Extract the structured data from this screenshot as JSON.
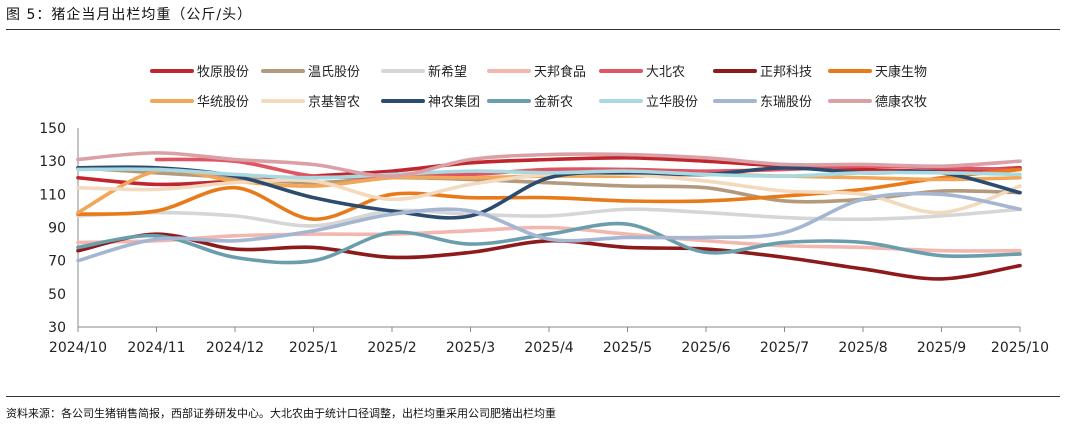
{
  "title": "图 5：猪企当月出栏均重（公斤/头）",
  "source": "资料来源：各公司生猪销售简报，西部证券研发中心。大北农由于统计口径调整，出栏均重采用公司肥猪出栏均重",
  "chart_data": {
    "type": "line",
    "title": "图 5：猪企当月出栏均重（公斤/头）",
    "xlabel": "",
    "ylabel": "",
    "ylim": [
      30,
      150
    ],
    "yticks": [
      30,
      50,
      70,
      90,
      110,
      130,
      150
    ],
    "grid": false,
    "legend_position": "top",
    "categories": [
      "2024/10",
      "2024/11",
      "2024/12",
      "2025/1",
      "2025/2",
      "2025/3",
      "2025/4",
      "2025/5",
      "2025/6",
      "2025/7",
      "2025/8",
      "2025/9",
      "2025/10"
    ],
    "series": [
      {
        "name": "牧原股份",
        "color": "#c0262d",
        "values": [
          120,
          116,
          118,
          121,
          124,
          129,
          131,
          132,
          130,
          127,
          125,
          124,
          126
        ]
      },
      {
        "name": "温氏股份",
        "color": "#b39a7c",
        "values": [
          126,
          123,
          120,
          117,
          120,
          119,
          117,
          115,
          114,
          106,
          107,
          112,
          111
        ]
      },
      {
        "name": "新希望",
        "color": "#d6d6d6",
        "values": [
          97,
          99,
          97,
          91,
          100,
          98,
          97,
          101,
          99,
          96,
          95,
          97,
          101
        ]
      },
      {
        "name": "天邦食品",
        "color": "#f2b8b0",
        "values": [
          81,
          82,
          85,
          86,
          86,
          88,
          90,
          86,
          82,
          79,
          78,
          76,
          76
        ]
      },
      {
        "name": "大北农",
        "color": "#e05563",
        "values": [
          null,
          131,
          130,
          121,
          121,
          122,
          125,
          125,
          124,
          125,
          127,
          126,
          125
        ]
      },
      {
        "name": "正邦科技",
        "color": "#8e1b1b",
        "values": [
          76,
          86,
          77,
          78,
          72,
          75,
          82,
          78,
          77,
          72,
          65,
          59,
          67
        ]
      },
      {
        "name": "天康生物",
        "color": "#e87a1a",
        "values": [
          98,
          100,
          114,
          95,
          110,
          108,
          108,
          106,
          106,
          109,
          113,
          120,
          125
        ]
      },
      {
        "name": "华统股份",
        "color": "#f2a65a",
        "values": [
          99,
          124,
          118,
          115,
          120,
          120,
          121,
          121,
          122,
          121,
          120,
          119,
          120
        ]
      },
      {
        "name": "京基智农",
        "color": "#f3d9bd",
        "values": [
          114,
          113,
          117,
          118,
          107,
          116,
          122,
          122,
          118,
          112,
          110,
          99,
          115
        ]
      },
      {
        "name": "神农集团",
        "color": "#2b4c6f",
        "values": [
          126,
          126,
          121,
          108,
          100,
          97,
          120,
          123,
          122,
          126,
          123,
          123,
          111
        ]
      },
      {
        "name": "金新农",
        "color": "#6a9ead",
        "values": [
          78,
          85,
          72,
          70,
          87,
          80,
          86,
          92,
          75,
          81,
          81,
          73,
          74
        ]
      },
      {
        "name": "立华股份",
        "color": "#a9d9e0",
        "values": [
          125,
          125,
          122,
          120,
          122,
          124,
          123,
          124,
          122,
          121,
          123,
          123,
          122
        ]
      },
      {
        "name": "东瑞股份",
        "color": "#a4b6d1",
        "values": [
          70,
          83,
          82,
          88,
          98,
          100,
          83,
          84,
          84,
          87,
          107,
          110,
          101
        ]
      },
      {
        "name": "德康农牧",
        "color": "#dba0a6",
        "values": [
          131,
          135,
          131,
          128,
          121,
          131,
          134,
          134,
          132,
          128,
          128,
          127,
          130
        ]
      }
    ]
  }
}
